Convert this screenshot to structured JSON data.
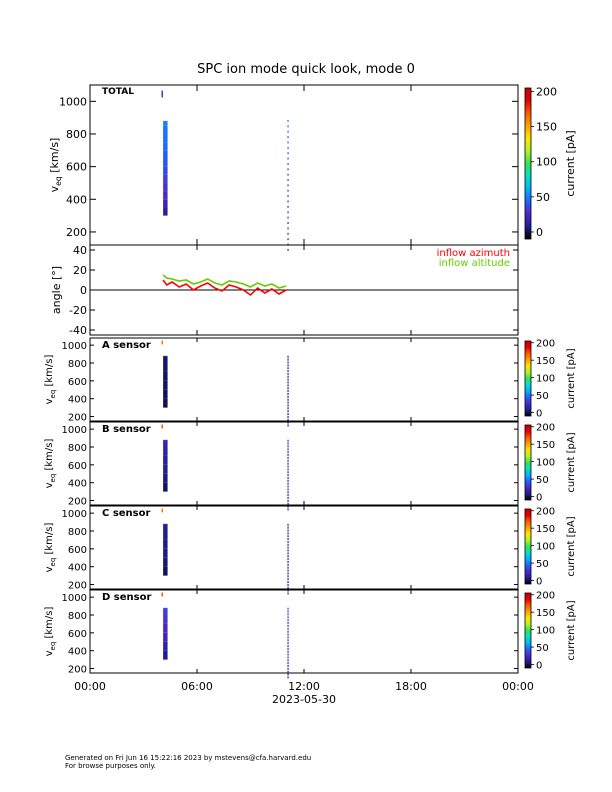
{
  "title": "SPC ion mode quick look, mode 0",
  "footer": {
    "line1": "Generated on Fri Jun 16 15:22:16 2023 by mstevens@cfa.harvard.edu",
    "line2": "For browse purposes only."
  },
  "xaxis": {
    "ticks": [
      "00:00",
      "06:00",
      "12:00",
      "18:00",
      "00:00"
    ],
    "tick_hours": [
      0,
      6,
      12,
      18,
      24
    ],
    "date_label": "2023-05-30"
  },
  "colorbar_label": "current [pA]",
  "spectrogram_ylabel": "v_eq [km/s]",
  "colorscale": [
    "#000000",
    "#1e1e96",
    "#5028c8",
    "#1e64ff",
    "#00b4ff",
    "#00e1c8",
    "#32e650",
    "#b4f028",
    "#ffe600",
    "#ffa000",
    "#ff5a00",
    "#e60000",
    "#c80000"
  ],
  "chart_data": [
    {
      "type": "heatmap",
      "panel_label": "TOTAL",
      "ylabel": "v_eq [km/s]",
      "ylim": [
        120,
        1100
      ],
      "yticks": [
        200,
        400,
        600,
        800,
        1000
      ],
      "colorbar": {
        "label": "current [pA]",
        "range": [
          -10,
          205
        ],
        "ticks": [
          0,
          50,
          100,
          150,
          200
        ]
      },
      "blocks": [
        {
          "t_start": 4.1,
          "t_end": 4.35,
          "v": [
            300,
            350,
            400,
            450,
            500,
            550,
            600,
            650,
            700,
            750,
            800,
            850,
            870
          ],
          "current": [
            12,
            18,
            25,
            30,
            33,
            36,
            40,
            42,
            45,
            47,
            48,
            50,
            50
          ]
        }
      ],
      "traces": [
        {
          "t": 11.1,
          "v_min": 90,
          "v_max": 880,
          "current_low": 15,
          "current_high": 45
        },
        {
          "t": 4.05,
          "v_min": 1030,
          "v_max": 1060,
          "current_low": 30,
          "current_high": 30
        }
      ]
    },
    {
      "type": "line",
      "ylabel": "angle [°]",
      "ylim": [
        -45,
        45
      ],
      "yticks": [
        -40,
        -20,
        0,
        20,
        40
      ],
      "series": [
        {
          "name": "inflow azimuth",
          "color": "#ff0000",
          "x": [
            4.1,
            4.3,
            4.6,
            5.0,
            5.4,
            5.8,
            6.2,
            6.6,
            7.0,
            7.4,
            7.8,
            8.2,
            8.6,
            9.0,
            9.4,
            9.8,
            10.2,
            10.6,
            11.0
          ],
          "y": [
            10,
            5,
            8,
            3,
            6,
            0,
            4,
            7,
            2,
            -1,
            5,
            3,
            0,
            -5,
            2,
            -3,
            1,
            -4,
            0
          ]
        },
        {
          "name": "inflow altitude",
          "color": "#66cc00",
          "x": [
            4.1,
            4.3,
            4.6,
            5.0,
            5.4,
            5.8,
            6.2,
            6.6,
            7.0,
            7.4,
            7.8,
            8.2,
            8.6,
            9.0,
            9.4,
            9.8,
            10.2,
            10.6,
            11.0
          ],
          "y": [
            15,
            12,
            11,
            9,
            10,
            6,
            8,
            11,
            7,
            5,
            9,
            8,
            6,
            3,
            7,
            4,
            6,
            2,
            4
          ]
        }
      ]
    },
    {
      "type": "heatmap",
      "panel_label": "A sensor",
      "ylabel": "v_eq [km/s]",
      "ylim": [
        150,
        1080
      ],
      "yticks": [
        200,
        400,
        600,
        800,
        1000
      ],
      "colorbar": {
        "label": "current [pA]",
        "range": [
          -10,
          205
        ],
        "ticks": [
          0,
          50,
          100,
          150,
          200
        ]
      },
      "blocks": [
        {
          "t_start": 4.1,
          "t_end": 4.35,
          "v": [
            300,
            400,
            500,
            600,
            700,
            800,
            870
          ],
          "current": [
            0,
            1,
            2,
            2,
            3,
            3,
            4
          ]
        }
      ],
      "traces": [
        {
          "t": 11.1,
          "v_min": 100,
          "v_max": 870,
          "current_low": 5,
          "current_high": 10
        },
        {
          "t": 4.05,
          "v_min": 1020,
          "v_max": 1040,
          "current_low": 160,
          "current_high": 160
        }
      ]
    },
    {
      "type": "heatmap",
      "panel_label": "B sensor",
      "ylabel": "v_eq [km/s]",
      "ylim": [
        150,
        1080
      ],
      "yticks": [
        200,
        400,
        600,
        800,
        1000
      ],
      "colorbar": {
        "label": "current [pA]",
        "range": [
          -10,
          205
        ],
        "ticks": [
          0,
          50,
          100,
          150,
          200
        ]
      },
      "blocks": [
        {
          "t_start": 4.1,
          "t_end": 4.35,
          "v": [
            300,
            400,
            500,
            600,
            700,
            800,
            870
          ],
          "current": [
            2,
            6,
            9,
            12,
            15,
            17,
            18
          ]
        }
      ],
      "traces": [
        {
          "t": 11.1,
          "v_min": 100,
          "v_max": 870,
          "current_low": 10,
          "current_high": 20
        },
        {
          "t": 4.05,
          "v_min": 1020,
          "v_max": 1040,
          "current_low": 170,
          "current_high": 170
        }
      ]
    },
    {
      "type": "heatmap",
      "panel_label": "C sensor",
      "ylabel": "v_eq [km/s]",
      "ylim": [
        150,
        1080
      ],
      "yticks": [
        200,
        400,
        600,
        800,
        1000
      ],
      "colorbar": {
        "label": "current [pA]",
        "range": [
          -10,
          205
        ],
        "ticks": [
          0,
          50,
          100,
          150,
          200
        ]
      },
      "blocks": [
        {
          "t_start": 4.1,
          "t_end": 4.35,
          "v": [
            300,
            400,
            500,
            600,
            700,
            800,
            870
          ],
          "current": [
            1,
            4,
            6,
            7,
            8,
            8,
            9
          ]
        }
      ],
      "traces": [
        {
          "t": 11.1,
          "v_min": 100,
          "v_max": 870,
          "current_low": 8,
          "current_high": 12
        },
        {
          "t": 4.05,
          "v_min": 1020,
          "v_max": 1040,
          "current_low": 160,
          "current_high": 160
        }
      ]
    },
    {
      "type": "heatmap",
      "panel_label": "D sensor",
      "ylabel": "v_eq [km/s]",
      "ylim": [
        150,
        1080
      ],
      "yticks": [
        200,
        400,
        600,
        800,
        1000
      ],
      "colorbar": {
        "label": "current [pA]",
        "range": [
          -10,
          205
        ],
        "ticks": [
          0,
          50,
          100,
          150,
          200
        ]
      },
      "blocks": [
        {
          "t_start": 4.1,
          "t_end": 4.35,
          "v": [
            300,
            400,
            500,
            600,
            700,
            800,
            870
          ],
          "current": [
            8,
            15,
            20,
            25,
            30,
            33,
            35
          ]
        }
      ],
      "traces": [
        {
          "t": 11.1,
          "v_min": 100,
          "v_max": 870,
          "current_low": 15,
          "current_high": 30
        },
        {
          "t": 4.05,
          "v_min": 1020,
          "v_max": 1040,
          "current_low": 170,
          "current_high": 170
        }
      ]
    }
  ]
}
